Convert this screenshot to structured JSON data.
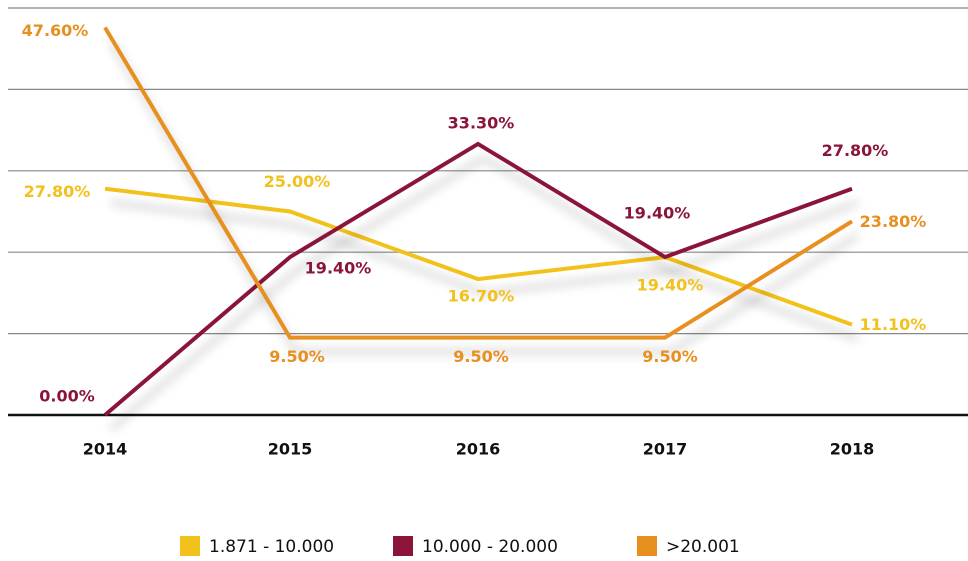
{
  "chart_data": {
    "type": "line",
    "categories": [
      "2014",
      "2015",
      "2016",
      "2017",
      "2018"
    ],
    "series": [
      {
        "name": "1.871 - 10.000",
        "color": "#f3c11b",
        "values": [
          27.8,
          25.0,
          16.7,
          19.4,
          11.1
        ],
        "value_labels": [
          "27.80%",
          "25.00%",
          "16.70%",
          "19.40%",
          "11.10%"
        ]
      },
      {
        "name": "10.000 - 20.000",
        "color": "#8a1538",
        "values": [
          0.0,
          19.4,
          33.3,
          19.4,
          27.8
        ],
        "value_labels": [
          "0.00%",
          "19.40%",
          "33.30%",
          "19.40%",
          "27.80%"
        ]
      },
      {
        "name": ">20.001",
        "color": "#e8901f",
        "values": [
          47.6,
          9.5,
          9.5,
          9.5,
          23.8
        ],
        "value_labels": [
          "47.60%",
          "9.50%",
          "9.50%",
          "9.50%",
          "23.80%"
        ]
      }
    ],
    "ylim": [
      0,
      50
    ],
    "yticks": [
      0,
      10,
      20,
      30,
      40,
      50
    ],
    "grid": true
  }
}
